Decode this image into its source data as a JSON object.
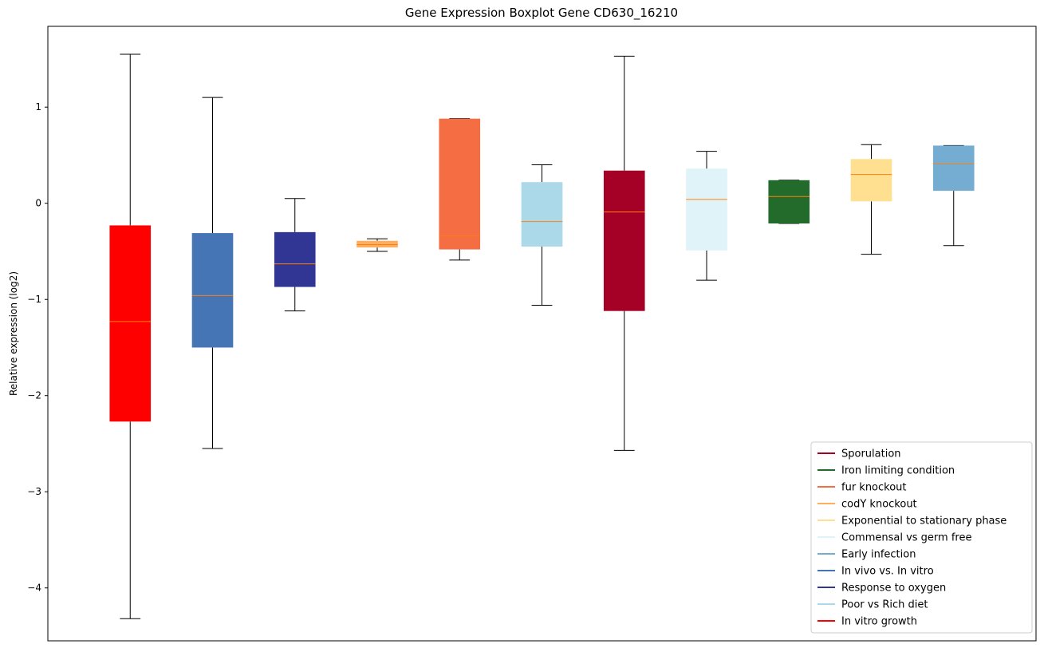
{
  "chart_data": {
    "type": "boxplot",
    "title": "Gene Expression Boxplot Gene CD630_16210",
    "xlabel": "",
    "ylabel": "Relative expression (log2)",
    "ylim": [
      -4.55,
      1.84
    ],
    "yticks": [
      {
        "value": 1,
        "label": "1"
      },
      {
        "value": 0,
        "label": "0"
      },
      {
        "value": -1,
        "label": "−1"
      },
      {
        "value": -2,
        "label": "−2"
      },
      {
        "value": -3,
        "label": "−3"
      },
      {
        "value": -4,
        "label": "−4"
      }
    ],
    "grid": false,
    "legend_position": "lower-right",
    "boxes": [
      {
        "name": "In vitro growth",
        "color": "#ff0000",
        "whisker_low": -4.32,
        "q1": -2.27,
        "median": -1.23,
        "q3": -0.23,
        "whisker_high": 1.55
      },
      {
        "name": "In vivo vs. In vitro",
        "color": "#4575b4",
        "whisker_low": -2.55,
        "q1": -1.5,
        "median": -0.96,
        "q3": -0.31,
        "whisker_high": 1.1
      },
      {
        "name": "Response to oxygen",
        "color": "#313695",
        "whisker_low": -1.12,
        "q1": -0.87,
        "median": -0.63,
        "q3": -0.3,
        "whisker_high": 0.05
      },
      {
        "name": "codY knockout",
        "color": "#fdae61",
        "whisker_low": -0.5,
        "q1": -0.46,
        "median": -0.43,
        "q3": -0.39,
        "whisker_high": -0.37
      },
      {
        "name": "fur knockout",
        "color": "#f46d43",
        "whisker_low": -0.59,
        "q1": -0.48,
        "median": -0.34,
        "q3": 0.88,
        "whisker_high": 0.88
      },
      {
        "name": "Poor vs Rich diet",
        "color": "#abd9e9",
        "whisker_low": -1.06,
        "q1": -0.45,
        "median": -0.19,
        "q3": 0.22,
        "whisker_high": 0.4
      },
      {
        "name": "Sporulation",
        "color": "#a50026",
        "whisker_low": -2.57,
        "q1": -1.12,
        "median": -0.09,
        "q3": 0.34,
        "whisker_high": 1.53
      },
      {
        "name": "Commensal vs germ free",
        "color": "#e0f3f8",
        "whisker_low": -0.8,
        "q1": -0.49,
        "median": 0.04,
        "q3": 0.36,
        "whisker_high": 0.54
      },
      {
        "name": "Iron limiting condition",
        "color": "#226b2b",
        "whisker_low": -0.21,
        "q1": -0.21,
        "median": 0.07,
        "q3": 0.24,
        "whisker_high": 0.24
      },
      {
        "name": "Exponential to stationary phase",
        "color": "#fee090",
        "whisker_low": -0.53,
        "q1": 0.02,
        "median": 0.3,
        "q3": 0.46,
        "whisker_high": 0.61
      },
      {
        "name": "Early infection",
        "color": "#74add1",
        "whisker_low": -0.44,
        "q1": 0.13,
        "median": 0.41,
        "q3": 0.6,
        "whisker_high": 0.6
      }
    ],
    "median_color": "#ff7f0e",
    "legend": [
      {
        "label": "Sporulation",
        "color": "#a50026"
      },
      {
        "label": "Iron limiting condition",
        "color": "#226b2b"
      },
      {
        "label": "fur knockout",
        "color": "#f46d43"
      },
      {
        "label": "codY knockout",
        "color": "#fdae61"
      },
      {
        "label": "Exponential to stationary phase",
        "color": "#fee090"
      },
      {
        "label": "Commensal vs germ free",
        "color": "#e0f3f8"
      },
      {
        "label": "Early infection",
        "color": "#74add1"
      },
      {
        "label": "In vivo vs. In vitro",
        "color": "#4575b4"
      },
      {
        "label": "Response to oxygen",
        "color": "#313695"
      },
      {
        "label": "Poor vs Rich diet",
        "color": "#abd9e9"
      },
      {
        "label": "In vitro growth",
        "color": "#ff0000"
      }
    ]
  }
}
